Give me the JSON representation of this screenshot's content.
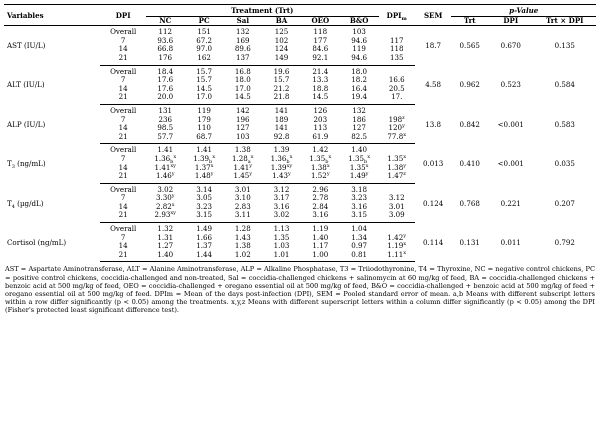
{
  "header": {
    "variables": "Variables",
    "dpi": "DPI",
    "treatment_group": "Treatment (Trt)",
    "treatments": [
      "NC",
      "PC",
      "Sal",
      "BA",
      "OEO",
      "B&O"
    ],
    "dpim": "DPI",
    "dpim_sub": "m",
    "sem": "SEM",
    "pvalue_group": "p-Value",
    "pvalues": [
      "Trt",
      "DPI",
      "Trt × DPI"
    ]
  },
  "groups": [
    {
      "variable": "AST (IU/L)",
      "sem": "18.7",
      "p_trt": "0.565",
      "p_dpi": "0.670",
      "p_int": "0.135",
      "rows": [
        {
          "dpi": "Overall",
          "vals": [
            [
              "112",
              ""
            ],
            [
              "151",
              ""
            ],
            [
              "132",
              ""
            ],
            [
              "125",
              ""
            ],
            [
              "118",
              ""
            ],
            [
              "103",
              ""
            ]
          ],
          "dpim": [
            "",
            ""
          ]
        },
        {
          "dpi": "7",
          "vals": [
            [
              "93.6",
              ""
            ],
            [
              "67.2",
              ""
            ],
            [
              "169",
              ""
            ],
            [
              "102",
              ""
            ],
            [
              "177",
              ""
            ],
            [
              "94.6",
              ""
            ]
          ],
          "dpim": [
            "117",
            ""
          ]
        },
        {
          "dpi": "14",
          "vals": [
            [
              "66.8",
              ""
            ],
            [
              "97.0",
              ""
            ],
            [
              "89.6",
              ""
            ],
            [
              "124",
              ""
            ],
            [
              "84.6",
              ""
            ],
            [
              "119",
              ""
            ]
          ],
          "dpim": [
            "118",
            ""
          ]
        },
        {
          "dpi": "21",
          "vals": [
            [
              "176",
              ""
            ],
            [
              "162",
              ""
            ],
            [
              "137",
              ""
            ],
            [
              "149",
              ""
            ],
            [
              "92.1",
              ""
            ],
            [
              "94.6",
              ""
            ]
          ],
          "dpim": [
            "135",
            ""
          ]
        }
      ]
    },
    {
      "variable": "ALT (IU/L)",
      "sem": "4.58",
      "p_trt": "0.962",
      "p_dpi": "0.523",
      "p_int": "0.584",
      "rows": [
        {
          "dpi": "Overall",
          "vals": [
            [
              "18.4",
              ""
            ],
            [
              "15.7",
              ""
            ],
            [
              "16.8",
              ""
            ],
            [
              "19.6",
              ""
            ],
            [
              "21.4",
              ""
            ],
            [
              "18.0",
              ""
            ]
          ],
          "dpim": [
            "",
            ""
          ]
        },
        {
          "dpi": "7",
          "vals": [
            [
              "17.6",
              ""
            ],
            [
              "15.7",
              ""
            ],
            [
              "18.0",
              ""
            ],
            [
              "15.7",
              ""
            ],
            [
              "13.3",
              ""
            ],
            [
              "18.2",
              ""
            ]
          ],
          "dpim": [
            "16.6",
            ""
          ]
        },
        {
          "dpi": "14",
          "vals": [
            [
              "17.6",
              ""
            ],
            [
              "14.5",
              ""
            ],
            [
              "17.0",
              ""
            ],
            [
              "21.2",
              ""
            ],
            [
              "18.8",
              ""
            ],
            [
              "16.4",
              ""
            ]
          ],
          "dpim": [
            "20.5",
            ""
          ]
        },
        {
          "dpi": "21",
          "vals": [
            [
              "20.0",
              ""
            ],
            [
              "17.0",
              ""
            ],
            [
              "14.5",
              ""
            ],
            [
              "21.8",
              ""
            ],
            [
              "14.5",
              ""
            ],
            [
              "19.4",
              ""
            ]
          ],
          "dpim": [
            "17.",
            ""
          ]
        }
      ]
    },
    {
      "variable": "ALP (IU/L)",
      "sem": "13.8",
      "p_trt": "0.842",
      "p_dpi": "<0.001",
      "p_int": "0.583",
      "rows": [
        {
          "dpi": "Overall",
          "vals": [
            [
              "131",
              ""
            ],
            [
              "119",
              ""
            ],
            [
              "142",
              ""
            ],
            [
              "141",
              ""
            ],
            [
              "126",
              ""
            ],
            [
              "132",
              ""
            ]
          ],
          "dpim": [
            "",
            ""
          ]
        },
        {
          "dpi": "7",
          "vals": [
            [
              "236",
              ""
            ],
            [
              "179",
              ""
            ],
            [
              "196",
              ""
            ],
            [
              "189",
              ""
            ],
            [
              "203",
              ""
            ],
            [
              "186",
              ""
            ]
          ],
          "dpim": [
            "198",
            "z"
          ]
        },
        {
          "dpi": "14",
          "vals": [
            [
              "98.5",
              ""
            ],
            [
              "110",
              ""
            ],
            [
              "127",
              ""
            ],
            [
              "141",
              ""
            ],
            [
              "113",
              ""
            ],
            [
              "127",
              ""
            ]
          ],
          "dpim": [
            "120",
            "y"
          ]
        },
        {
          "dpi": "21",
          "vals": [
            [
              "57.7",
              ""
            ],
            [
              "68.7",
              ""
            ],
            [
              "103",
              ""
            ],
            [
              "92.8",
              ""
            ],
            [
              "61.9",
              ""
            ],
            [
              "82.5",
              ""
            ]
          ],
          "dpim": [
            "77.8",
            "x"
          ]
        }
      ]
    },
    {
      "variable": "T3 (ng/mL)",
      "var_main": "T",
      "var_sub": "3",
      "var_rest": " (ng/mL)",
      "sem": "0.013",
      "p_trt": "0.410",
      "p_dpi": "<0.001",
      "p_int": "0.035",
      "rows": [
        {
          "dpi": "Overall",
          "vals": [
            [
              "1.41",
              ""
            ],
            [
              "1.41",
              ""
            ],
            [
              "1.38",
              ""
            ],
            [
              "1.39",
              ""
            ],
            [
              "1.42",
              ""
            ],
            [
              "1.40",
              ""
            ]
          ],
          "dpim": [
            "",
            ""
          ]
        },
        {
          "dpi": "7",
          "vals": [
            [
              "1.36",
              "b x"
            ],
            [
              "1.39",
              "b x"
            ],
            [
              "1.28",
              "a x"
            ],
            [
              "1.36",
              "b x"
            ],
            [
              "1.35",
              "b x"
            ],
            [
              "1.35",
              "b x"
            ]
          ],
          "dpim": [
            "1.35",
            "x"
          ]
        },
        {
          "dpi": "14",
          "vals": [
            [
              "1.41",
              "xy"
            ],
            [
              "1.37",
              "x"
            ],
            [
              "1.41",
              "y"
            ],
            [
              "1.39",
              "xy"
            ],
            [
              "1.38",
              "x"
            ],
            [
              "1.35",
              "x"
            ]
          ],
          "dpim": [
            "1.38",
            "y"
          ]
        },
        {
          "dpi": "21",
          "vals": [
            [
              "1.46",
              "y"
            ],
            [
              "1.48",
              "y"
            ],
            [
              "1.45",
              "y"
            ],
            [
              "1.43",
              "y"
            ],
            [
              "1.52",
              "y"
            ],
            [
              "1.49",
              "y"
            ]
          ],
          "dpim": [
            "1.47",
            "z"
          ]
        }
      ]
    },
    {
      "variable": "T4 (µg/dL)",
      "var_main": "T",
      "var_sub": "4",
      "var_rest": " (µg/dL)",
      "sem": "0.124",
      "p_trt": "0.768",
      "p_dpi": "0.221",
      "p_int": "0.207",
      "rows": [
        {
          "dpi": "Overall",
          "vals": [
            [
              "3.02",
              ""
            ],
            [
              "3.14",
              ""
            ],
            [
              "3.01",
              ""
            ],
            [
              "3.12",
              ""
            ],
            [
              "2.96",
              ""
            ],
            [
              "3.18",
              ""
            ]
          ],
          "dpim": [
            "",
            ""
          ]
        },
        {
          "dpi": "7",
          "vals": [
            [
              "3.30",
              "y"
            ],
            [
              "3.05",
              ""
            ],
            [
              "3.10",
              ""
            ],
            [
              "3.17",
              ""
            ],
            [
              "2.78",
              ""
            ],
            [
              "3.23",
              ""
            ]
          ],
          "dpim": [
            "3.12",
            ""
          ]
        },
        {
          "dpi": "14",
          "vals": [
            [
              "2.82",
              "x"
            ],
            [
              "3.23",
              ""
            ],
            [
              "2.83",
              ""
            ],
            [
              "3.16",
              ""
            ],
            [
              "2.84",
              ""
            ],
            [
              "3.16",
              ""
            ]
          ],
          "dpim": [
            "3.01",
            ""
          ]
        },
        {
          "dpi": "21",
          "vals": [
            [
              "2.93",
              "xy"
            ],
            [
              "3.15",
              ""
            ],
            [
              "3.11",
              ""
            ],
            [
              "3.02",
              ""
            ],
            [
              "3.16",
              ""
            ],
            [
              "3.15",
              ""
            ]
          ],
          "dpim": [
            "3.09",
            ""
          ]
        }
      ]
    },
    {
      "variable": "Cortisol (ng/mL)",
      "sem": "0.114",
      "p_trt": "0.131",
      "p_dpi": "0.011",
      "p_int": "0.792",
      "rows": [
        {
          "dpi": "Overall",
          "vals": [
            [
              "1.32",
              ""
            ],
            [
              "1.49",
              ""
            ],
            [
              "1.28",
              ""
            ],
            [
              "1.13",
              ""
            ],
            [
              "1.19",
              ""
            ],
            [
              "1.04",
              ""
            ]
          ],
          "dpim": [
            "",
            ""
          ]
        },
        {
          "dpi": "7",
          "vals": [
            [
              "1.31",
              ""
            ],
            [
              "1.66",
              ""
            ],
            [
              "1.43",
              ""
            ],
            [
              "1.35",
              ""
            ],
            [
              "1.40",
              ""
            ],
            [
              "1.34",
              ""
            ]
          ],
          "dpim": [
            "1.42",
            "y"
          ]
        },
        {
          "dpi": "14",
          "vals": [
            [
              "1.27",
              ""
            ],
            [
              "1.37",
              ""
            ],
            [
              "1.38",
              ""
            ],
            [
              "1.03",
              ""
            ],
            [
              "1.17",
              ""
            ],
            [
              "0.97",
              ""
            ]
          ],
          "dpim": [
            "1.19",
            "x"
          ]
        },
        {
          "dpi": "21",
          "vals": [
            [
              "1.40",
              ""
            ],
            [
              "1.44",
              ""
            ],
            [
              "1.02",
              ""
            ],
            [
              "1.01",
              ""
            ],
            [
              "1.00",
              ""
            ],
            [
              "0.81",
              ""
            ]
          ],
          "dpim": [
            "1.11",
            "x"
          ]
        }
      ]
    }
  ],
  "footnote": "AST = Aspartate Aminotransferase, ALT = Alanine Aminotransferase, ALP = Alkaline Phosphatase, T3 = Triiodothyronine, T4 = Thyroxine, NC = negative control chickens, PC = positive control chickens, coccidia-challenged and non-treated, Sal = coccidia-challenged chickens + salinomycin at 60 mg/kg of feed, BA = coccidia-challenged chickens + benzoic acid at 500 mg/kg of feed, OEO = coccidia-challenged + oregano essential oil at 500 mg/kg of feed, B&O = coccidia-challenged + benzoic acid at 500 mg/kg of feed + oregano essential oil at 500 mg/kg of feed. DPIm = Mean of the days post-infection (DPI), SEM = Pooled standard error of mean. a,b Means with different subscript letters within a row differ significantly (p < 0.05) among the treatments. x,y,z Means with different superscript letters within a column differ significantly (p < 0.05) among the DPI (Fisher's protected least significant difference test)."
}
